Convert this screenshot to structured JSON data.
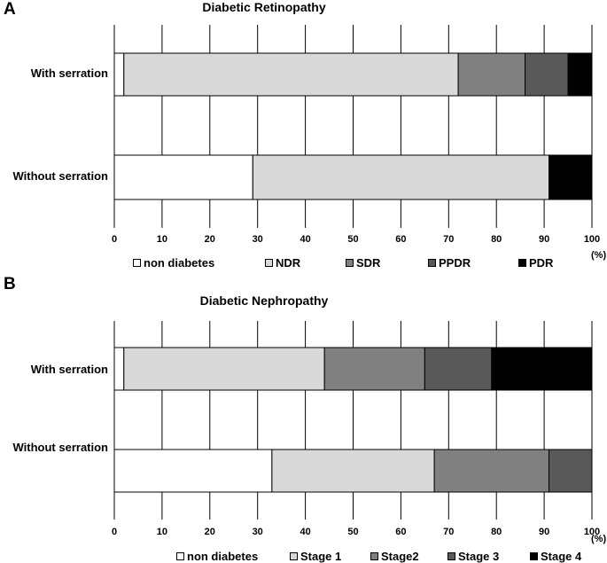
{
  "chart_data": [
    {
      "type": "stacked-bar-horizontal",
      "panel": "A",
      "title": "Diabetic Retinopathy",
      "categories": [
        "With serration",
        "Without serration"
      ],
      "series": [
        {
          "name": "non diabetes",
          "color": "#ffffff",
          "values": [
            2,
            29
          ]
        },
        {
          "name": "NDR",
          "color": "#d9d9d9",
          "values": [
            70,
            62
          ]
        },
        {
          "name": "SDR",
          "color": "#808080",
          "values": [
            14,
            0
          ]
        },
        {
          "name": "PPDR",
          "color": "#595959",
          "values": [
            9,
            0
          ]
        },
        {
          "name": "PDR",
          "color": "#000000",
          "values": [
            5,
            9
          ]
        }
      ],
      "xlim": [
        0,
        100
      ],
      "xticks": [
        "0",
        "10",
        "20",
        "30",
        "40",
        "50",
        "60",
        "70",
        "80",
        "90",
        "100"
      ],
      "xunit": "(%)"
    },
    {
      "type": "stacked-bar-horizontal",
      "panel": "B",
      "title": "Diabetic Nephropathy",
      "categories": [
        "With serration",
        "Without serration"
      ],
      "series": [
        {
          "name": "non diabetes",
          "color": "#ffffff",
          "values": [
            2,
            33
          ]
        },
        {
          "name": "Stage 1",
          "color": "#d9d9d9",
          "values": [
            42,
            34
          ]
        },
        {
          "name": "Stage2",
          "color": "#808080",
          "values": [
            21,
            24
          ]
        },
        {
          "name": "Stage 3",
          "color": "#595959",
          "values": [
            14,
            9
          ]
        },
        {
          "name": "Stage 4",
          "color": "#000000",
          "values": [
            21,
            0
          ]
        }
      ],
      "xlim": [
        0,
        100
      ],
      "xticks": [
        "0",
        "10",
        "20",
        "30",
        "40",
        "50",
        "60",
        "70",
        "80",
        "90",
        "100"
      ],
      "xunit": "(%)"
    }
  ]
}
